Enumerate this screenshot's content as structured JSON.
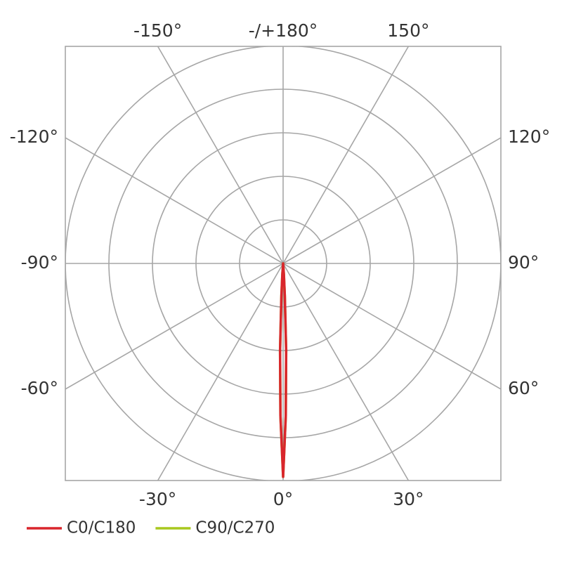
{
  "chart_data": {
    "type": "polar",
    "angle_ticks": [
      {
        "value": 0,
        "label": "0°"
      },
      {
        "value": 30,
        "label": "30°"
      },
      {
        "value": 60,
        "label": "60°"
      },
      {
        "value": 90,
        "label": "90°"
      },
      {
        "value": 120,
        "label": "120°"
      },
      {
        "value": 150,
        "label": "150°"
      },
      {
        "value": 180,
        "label": "-/+180°"
      },
      {
        "value": -150,
        "label": "-150°"
      },
      {
        "value": -120,
        "label": "-120°"
      },
      {
        "value": -90,
        "label": "-90°"
      },
      {
        "value": -60,
        "label": "-60°"
      },
      {
        "value": -30,
        "label": "-30°"
      }
    ],
    "rlim": [
      0,
      1
    ],
    "rticks": [
      0.2,
      0.4,
      0.6,
      0.8,
      1
    ],
    "angles": [
      -5,
      -4,
      -3,
      -2,
      -1,
      0,
      1,
      2,
      3,
      4,
      5
    ],
    "series": [
      {
        "name": "C90/C270",
        "color": "#a8c81e",
        "values": [
          0,
          0.05,
          0.15,
          0.4,
          0.7,
          0.98,
          0.7,
          0.4,
          0.15,
          0.05,
          0
        ]
      },
      {
        "name": "C0/C180",
        "color": "#d9262c",
        "values": [
          0,
          0.05,
          0.15,
          0.4,
          0.7,
          0.98,
          0.7,
          0.4,
          0.15,
          0.05,
          0
        ]
      }
    ]
  }
}
